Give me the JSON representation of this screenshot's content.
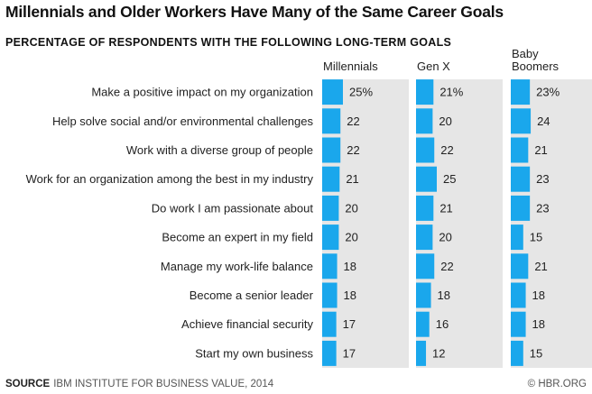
{
  "title": "Millennials and Older Workers Have Many of the Same Career Goals",
  "subtitle": "PERCENTAGE OF RESPONDENTS WITH THE FOLLOWING LONG-TERM GOALS",
  "footer": {
    "source_label": "SOURCE",
    "source_text": "IBM INSTITUTE FOR BUSINESS VALUE, 2014",
    "credit": "© HBR.ORG"
  },
  "colors": {
    "bar": "#1aa7ec",
    "panel": "#e6e6e6",
    "text": "#222222"
  },
  "chart_data": {
    "type": "bar",
    "orientation": "horizontal",
    "categories": [
      "Make a positive impact on my organization",
      "Help solve social and/or environmental challenges",
      "Work with a diverse group of people",
      "Work for an organization among the best in my industry",
      "Do work I am passionate about",
      "Become an expert in my field",
      "Manage my work-life balance",
      "Become a senior leader",
      "Achieve financial security",
      "Start my own business"
    ],
    "series": [
      {
        "name": "Millennials",
        "values": [
          25,
          22,
          22,
          21,
          20,
          20,
          18,
          18,
          17,
          17
        ],
        "labels": [
          "25%",
          "22",
          "22",
          "21",
          "20",
          "20",
          "18",
          "18",
          "17",
          "17"
        ]
      },
      {
        "name": "Gen X",
        "values": [
          21,
          20,
          22,
          25,
          21,
          20,
          22,
          18,
          16,
          12
        ],
        "labels": [
          "21%",
          "20",
          "22",
          "25",
          "21",
          "20",
          "22",
          "18",
          "16",
          "12"
        ]
      },
      {
        "name": "Baby Boomers",
        "values": [
          23,
          24,
          21,
          23,
          23,
          15,
          21,
          18,
          18,
          15
        ],
        "labels": [
          "23%",
          "24",
          "21",
          "23",
          "23",
          "15",
          "21",
          "18",
          "18",
          "15"
        ]
      }
    ],
    "ylabel": "",
    "xlabel": "",
    "unit": "%",
    "xlim": [
      0,
      100
    ],
    "grid": false,
    "legend": "none"
  }
}
